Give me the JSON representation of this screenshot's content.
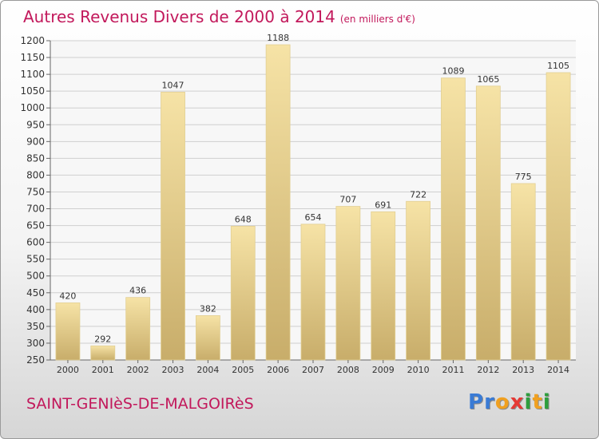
{
  "header": {
    "title": "Autres Revenus Divers de 2000 à 2014",
    "subtitle": "(en milliers d'€)"
  },
  "footer": {
    "town": "SAINT-GENIèS-DE-MALGOIRèS",
    "logo": [
      "P",
      "r",
      "o",
      "x",
      "i",
      "t",
      "i"
    ]
  },
  "colors": {
    "title": "#c2185b",
    "bar_top": "#f6e3a6",
    "bar_bottom": "#c8ad6a",
    "grid": "#cfcfcf",
    "logo": [
      "#3a7bd5",
      "#3a7bd5",
      "#f0a020",
      "#e53935",
      "#2e9e3e",
      "#f0a020",
      "#2e9e3e"
    ]
  },
  "chart_data": {
    "type": "bar",
    "title": "Autres Revenus Divers de 2000 à 2014",
    "subtitle": "(en milliers d'€)",
    "categories": [
      "2000",
      "2001",
      "2002",
      "2003",
      "2004",
      "2005",
      "2006",
      "2007",
      "2008",
      "2009",
      "2010",
      "2011",
      "2012",
      "2013",
      "2014"
    ],
    "values": [
      420,
      292,
      436,
      1047,
      382,
      648,
      1188,
      654,
      707,
      691,
      722,
      1089,
      1065,
      775,
      1105
    ],
    "ylim": [
      250,
      1200
    ],
    "yticks": [
      250,
      300,
      350,
      400,
      450,
      500,
      550,
      600,
      650,
      700,
      750,
      800,
      850,
      900,
      950,
      1000,
      1050,
      1100,
      1150,
      1200
    ],
    "grid": true
  }
}
